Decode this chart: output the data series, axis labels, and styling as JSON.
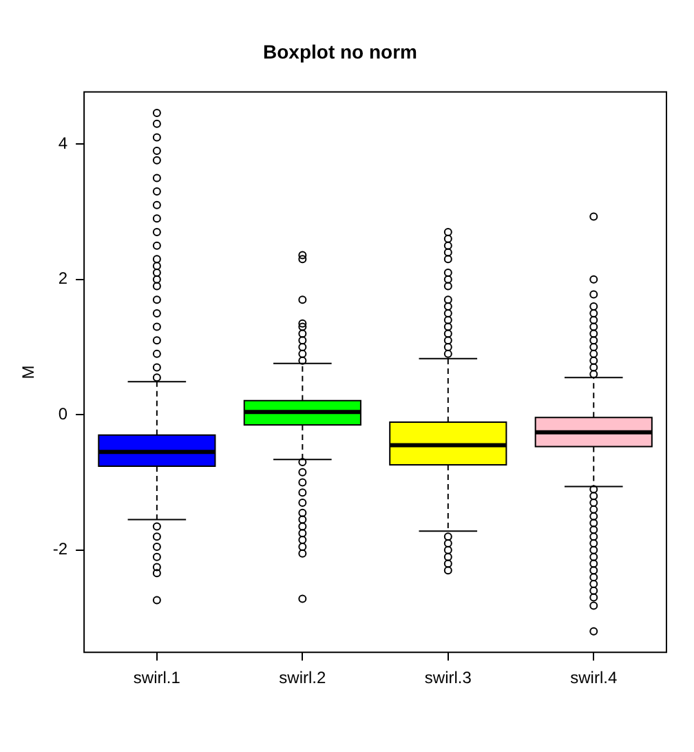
{
  "chart_data": {
    "type": "box",
    "title": "Boxplot no norm",
    "ylabel": "M",
    "categories": [
      "swirl.1",
      "swirl.2",
      "swirl.3",
      "swirl.4"
    ],
    "colors": [
      "#0000ff",
      "#00ff00",
      "#ffff00",
      "#ffc0cb"
    ],
    "ylim": [
      -3.51,
      4.77
    ],
    "yticks": [
      -2,
      0,
      2,
      4
    ],
    "boxes": [
      {
        "low": -1.55,
        "q1": -0.76,
        "median": -0.55,
        "q3": -0.3,
        "high": 0.49,
        "outliers": [
          0.55,
          0.7,
          0.9,
          1.1,
          1.3,
          1.5,
          1.7,
          1.9,
          2.0,
          2.1,
          2.2,
          2.3,
          2.5,
          2.7,
          2.9,
          3.1,
          3.3,
          3.5,
          3.76,
          3.9,
          4.1,
          4.3,
          4.46,
          -1.65,
          -1.8,
          -1.95,
          -2.1,
          -2.25,
          -2.34,
          -2.74
        ]
      },
      {
        "low": -0.66,
        "q1": -0.15,
        "median": 0.04,
        "q3": 0.21,
        "high": 0.76,
        "outliers": [
          0.8,
          0.9,
          1.0,
          1.1,
          1.2,
          1.3,
          1.35,
          1.7,
          2.3,
          2.36,
          -0.7,
          -0.85,
          -1.0,
          -1.15,
          -1.3,
          -1.45,
          -1.55,
          -1.65,
          -1.75,
          -1.85,
          -1.95,
          -2.05,
          -2.72
        ]
      },
      {
        "low": -1.72,
        "q1": -0.74,
        "median": -0.45,
        "q3": -0.11,
        "high": 0.83,
        "outliers": [
          0.9,
          1.0,
          1.1,
          1.2,
          1.3,
          1.4,
          1.5,
          1.6,
          1.7,
          1.9,
          2.0,
          2.1,
          2.3,
          2.4,
          2.5,
          2.6,
          2.7,
          -1.8,
          -1.9,
          -2.0,
          -2.1,
          -2.2,
          -2.3
        ]
      },
      {
        "low": -1.06,
        "q1": -0.47,
        "median": -0.26,
        "q3": -0.04,
        "high": 0.55,
        "outliers": [
          0.6,
          0.7,
          0.8,
          0.9,
          1.0,
          1.1,
          1.2,
          1.3,
          1.4,
          1.5,
          1.6,
          1.78,
          2.0,
          2.93,
          -1.1,
          -1.2,
          -1.3,
          -1.4,
          -1.5,
          -1.6,
          -1.7,
          -1.8,
          -1.9,
          -2.0,
          -2.1,
          -2.2,
          -2.3,
          -2.4,
          -2.5,
          -2.6,
          -2.7,
          -2.82,
          -3.2
        ]
      }
    ]
  }
}
